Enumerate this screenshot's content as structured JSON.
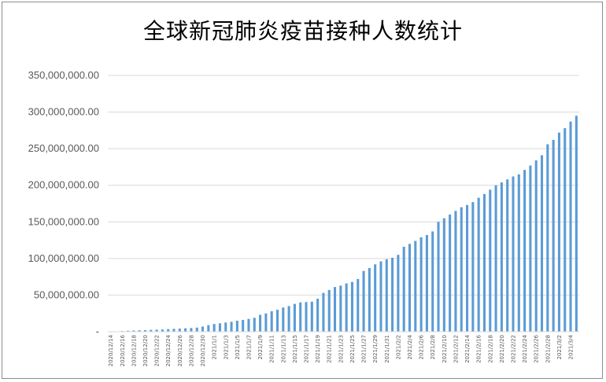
{
  "chart_data": {
    "type": "bar",
    "title": "全球新冠肺炎疫苗接种人数统计",
    "xlabel": "",
    "ylabel": "",
    "ylim": [
      0,
      350000000
    ],
    "yticks": [
      0,
      50000000,
      100000000,
      150000000,
      200000000,
      250000000,
      300000000,
      350000000
    ],
    "ytick_labels": [
      "-",
      "50,000,000.00",
      "100,000,000.00",
      "150,000,000.00",
      "200,000,000.00",
      "250,000,000.00",
      "300,000,000.00",
      "350,000,000.00"
    ],
    "grid": true,
    "bar_color": "#5b9bd5",
    "categories": [
      "2020/12/14",
      "2020/12/15",
      "2020/12/16",
      "2020/12/17",
      "2020/12/18",
      "2020/12/19",
      "2020/12/20",
      "2020/12/21",
      "2020/12/22",
      "2020/12/23",
      "2020/12/24",
      "2020/12/25",
      "2020/12/26",
      "2020/12/27",
      "2020/12/28",
      "2020/12/29",
      "2020/12/30",
      "2020/12/31",
      "2021/1/1",
      "2021/1/2",
      "2021/1/3",
      "2021/1/4",
      "2021/1/5",
      "2021/1/6",
      "2021/1/7",
      "2021/1/8",
      "2021/1/9",
      "2021/1/10",
      "2021/1/11",
      "2021/1/12",
      "2021/1/13",
      "2021/1/14",
      "2021/1/15",
      "2021/1/16",
      "2021/1/17",
      "2021/1/18",
      "2021/1/19",
      "2021/1/20",
      "2021/1/21",
      "2021/1/22",
      "2021/1/23",
      "2021/1/24",
      "2021/1/25",
      "2021/1/26",
      "2021/1/27",
      "2021/1/28",
      "2021/1/29",
      "2021/1/30",
      "2021/1/31",
      "2021/2/1",
      "2021/2/2",
      "2021/2/3",
      "2021/2/4",
      "2021/2/5",
      "2021/2/6",
      "2021/2/7",
      "2021/2/8",
      "2021/2/9",
      "2021/2/10",
      "2021/2/11",
      "2021/2/12",
      "2021/2/13",
      "2021/2/14",
      "2021/2/15",
      "2021/2/16",
      "2021/2/17",
      "2021/2/18",
      "2021/2/19",
      "2021/2/20",
      "2021/2/21",
      "2021/2/22",
      "2021/2/23",
      "2021/2/24",
      "2021/2/25",
      "2021/2/26",
      "2021/2/27",
      "2021/2/28",
      "2021/3/1",
      "2021/3/2",
      "2021/3/3",
      "2021/3/4",
      "2021/3/5"
    ],
    "tick_labels_shown": [
      "2020/12/14",
      "2020/12/16",
      "2020/12/18",
      "2020/12/20",
      "2020/12/22",
      "2020/12/24",
      "2020/12/26",
      "2020/12/28",
      "2020/12/30",
      "2021/1/1",
      "2021/1/3",
      "2021/1/5",
      "2021/1/7",
      "2021/1/9",
      "2021/1/11",
      "2021/1/13",
      "2021/1/15",
      "2021/1/17",
      "2021/1/19",
      "2021/1/21",
      "2021/1/23",
      "2021/1/25",
      "2021/1/27",
      "2021/1/29",
      "2021/1/31",
      "2021/2/2",
      "2021/2/4",
      "2021/2/6",
      "2021/2/8",
      "2021/2/10",
      "2021/2/12",
      "2021/2/14",
      "2021/2/16",
      "2021/2/18",
      "2021/2/20",
      "2021/2/22",
      "2021/2/24",
      "2021/2/26",
      "2021/2/28",
      "2021/3/2",
      "2021/3/4"
    ],
    "values": [
      100000,
      500000,
      900000,
      1300000,
      1600000,
      1900000,
      2200000,
      2500000,
      2800000,
      3100000,
      3500000,
      3900000,
      4200000,
      4600000,
      5000000,
      5600000,
      7000000,
      9000000,
      10500000,
      11500000,
      12500000,
      13500000,
      15000000,
      16000000,
      17500000,
      19000000,
      23000000,
      25000000,
      28000000,
      30000000,
      33000000,
      35000000,
      38000000,
      40000000,
      40500000,
      41000000,
      45000000,
      53000000,
      57000000,
      61000000,
      63000000,
      66000000,
      68000000,
      72000000,
      83000000,
      87000000,
      92000000,
      96000000,
      99000000,
      101000000,
      105000000,
      116000000,
      120000000,
      124000000,
      129000000,
      132000000,
      137000000,
      150000000,
      155000000,
      160000000,
      165000000,
      170000000,
      173000000,
      177000000,
      183000000,
      188000000,
      194000000,
      200000000,
      204000000,
      208000000,
      212000000,
      215000000,
      221000000,
      227000000,
      234000000,
      241000000,
      256000000,
      262000000,
      272000000,
      278000000,
      287000000,
      295000000
    ]
  }
}
